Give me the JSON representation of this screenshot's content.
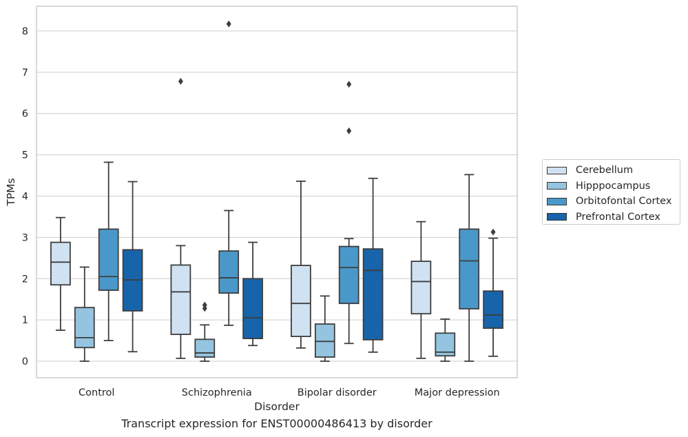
{
  "chart_data": {
    "type": "box",
    "caption": "Transcript expression for ENST00000486413 by disorder",
    "xlabel": "Disorder",
    "ylabel": "TPMs",
    "ylim": [
      -0.4,
      8.6
    ],
    "yticks": [
      0,
      1,
      2,
      3,
      4,
      5,
      6,
      7,
      8
    ],
    "grid": true,
    "legend_position": "right",
    "categories": [
      "Control",
      "Schizophrenia",
      "Bipolar disorder",
      "Major depression"
    ],
    "series": [
      {
        "name": "Cerebellum",
        "color": "#d0e1f2",
        "boxes": [
          {
            "whislo": 0.75,
            "q1": 1.85,
            "med": 2.4,
            "q3": 2.88,
            "whishi": 3.48,
            "fliers": []
          },
          {
            "whislo": 0.07,
            "q1": 0.65,
            "med": 1.68,
            "q3": 2.33,
            "whishi": 2.8,
            "fliers": [
              6.78
            ]
          },
          {
            "whislo": 0.32,
            "q1": 0.6,
            "med": 1.4,
            "q3": 2.32,
            "whishi": 4.36,
            "fliers": []
          },
          {
            "whislo": 0.07,
            "q1": 1.15,
            "med": 1.93,
            "q3": 2.42,
            "whishi": 3.38,
            "fliers": []
          }
        ]
      },
      {
        "name": "Hipppocampus",
        "color": "#94c4df",
        "boxes": [
          {
            "whislo": 0.0,
            "q1": 0.33,
            "med": 0.57,
            "q3": 1.3,
            "whishi": 2.28,
            "fliers": []
          },
          {
            "whislo": 0.0,
            "q1": 0.1,
            "med": 0.2,
            "q3": 0.53,
            "whishi": 0.88,
            "fliers": [
              1.28,
              1.36
            ]
          },
          {
            "whislo": 0.0,
            "q1": 0.1,
            "med": 0.48,
            "q3": 0.9,
            "whishi": 1.58,
            "fliers": []
          },
          {
            "whislo": 0.0,
            "q1": 0.13,
            "med": 0.22,
            "q3": 0.68,
            "whishi": 1.02,
            "fliers": []
          }
        ]
      },
      {
        "name": "Orbitofontal Cortex",
        "color": "#4a98c9",
        "boxes": [
          {
            "whislo": 0.5,
            "q1": 1.72,
            "med": 2.05,
            "q3": 3.2,
            "whishi": 4.82,
            "fliers": []
          },
          {
            "whislo": 0.87,
            "q1": 1.65,
            "med": 2.02,
            "q3": 2.67,
            "whishi": 3.65,
            "fliers": [
              8.17
            ]
          },
          {
            "whislo": 0.43,
            "q1": 1.4,
            "med": 2.27,
            "q3": 2.78,
            "whishi": 2.97,
            "fliers": [
              5.58,
              6.71
            ]
          },
          {
            "whislo": 0.0,
            "q1": 1.27,
            "med": 2.43,
            "q3": 3.2,
            "whishi": 4.52,
            "fliers": []
          }
        ]
      },
      {
        "name": "Prefrontal Cortex",
        "color": "#1764ab",
        "boxes": [
          {
            "whislo": 0.23,
            "q1": 1.22,
            "med": 1.97,
            "q3": 2.7,
            "whishi": 4.35,
            "fliers": []
          },
          {
            "whislo": 0.38,
            "q1": 0.55,
            "med": 1.05,
            "q3": 2.0,
            "whishi": 2.88,
            "fliers": []
          },
          {
            "whislo": 0.22,
            "q1": 0.52,
            "med": 2.2,
            "q3": 2.72,
            "whishi": 4.43,
            "fliers": []
          },
          {
            "whislo": 0.12,
            "q1": 0.8,
            "med": 1.12,
            "q3": 1.7,
            "whishi": 2.98,
            "fliers": [
              3.13
            ]
          }
        ]
      }
    ]
  }
}
